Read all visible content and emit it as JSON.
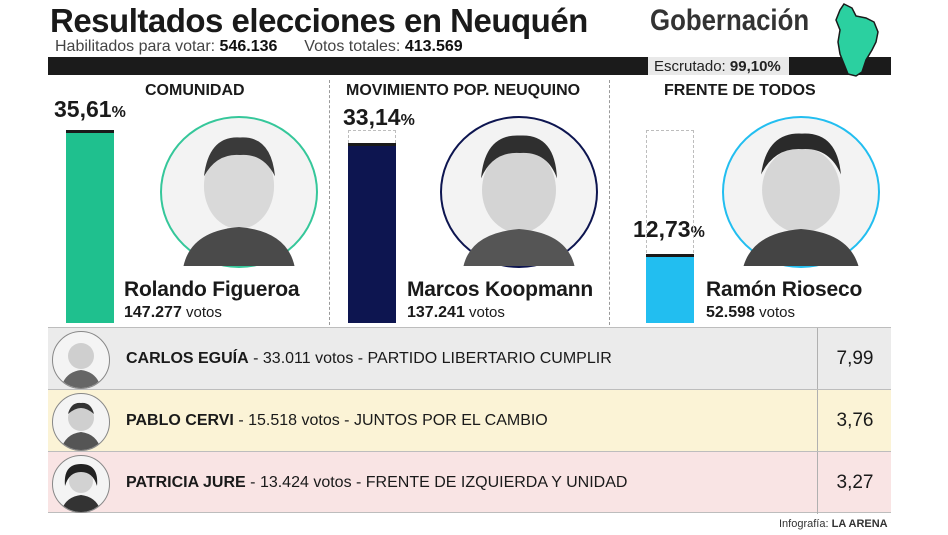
{
  "header": {
    "title": "Resultados elecciones en Neuquén",
    "subtitle": "Gobernación",
    "habilitados_label": "Habilitados para votar:",
    "habilitados_value": "546.136",
    "votos_label": "Votos totales:",
    "votos_value": "413.569",
    "escrutado_label": "Escrutado:",
    "escrutado_value": "99,10%"
  },
  "chart_data": {
    "type": "bar",
    "categories": [
      "COMUNIDAD",
      "MOVIMIENTO POP. NEUQUINO",
      "FRENTE DE TODOS"
    ],
    "values": [
      35.61,
      33.14,
      12.73
    ],
    "ylim": [
      0,
      35.61
    ],
    "unit": "%",
    "colors": [
      "#1fc08e",
      "#0d1550",
      "#22bef0"
    ],
    "candidates": [
      {
        "party": "COMUNIDAD",
        "pct": "35,61",
        "name": "Rolando Figueroa",
        "votes": "147.277",
        "votes_label": "votos"
      },
      {
        "party": "MOVIMIENTO POP. NEUQUINO",
        "pct": "33,14",
        "name": "Marcos Koopmann",
        "votes": "137.241",
        "votes_label": "votos"
      },
      {
        "party": "FRENTE DE TODOS",
        "pct": "12,73",
        "name": "Ramón Rioseco",
        "votes": "52.598",
        "votes_label": "votos"
      }
    ],
    "table": {
      "header": "%",
      "rows": [
        {
          "name": "CARLOS EGUÍA",
          "votes": "33.011 votos",
          "party": "PARTIDO LIBERTARIO CUMPLIR",
          "pct": "7,99",
          "bg": "#ebebeb"
        },
        {
          "name": "PABLO CERVI",
          "votes": "15.518 votos",
          "party": "JUNTOS POR EL CAMBIO",
          "pct": "3,76",
          "bg": "#fbf3d6"
        },
        {
          "name": "PATRICIA JURE",
          "votes": "13.424 votos",
          "party": "FRENTE DE IZQUIERDA Y UNIDAD",
          "pct": "3,27",
          "bg": "#f9e4e4"
        }
      ]
    }
  },
  "footer": {
    "credit_label": "Infografía:",
    "credit_brand": "LA ARENA"
  },
  "icons": {
    "map": "neuquen-province-map-icon",
    "portrait": "candidate-portrait-icon"
  }
}
